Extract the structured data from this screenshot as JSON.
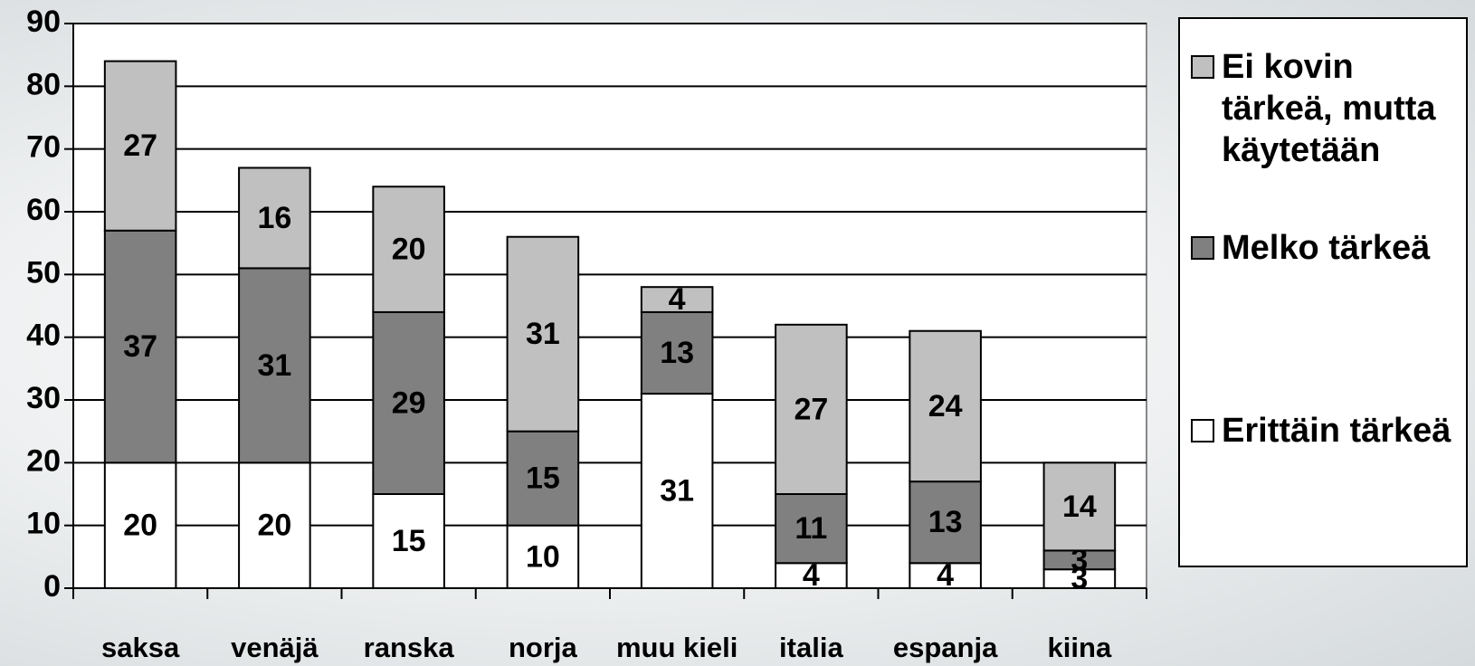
{
  "chart_data": {
    "type": "stacked_bar",
    "categories": [
      "saksa",
      "venäjä",
      "ranska",
      "norja",
      "muu kieli",
      "italia",
      "espanja",
      "kiina"
    ],
    "series": [
      {
        "name": "Erittäin tärkeä",
        "color": "#ffffff",
        "values": [
          20,
          20,
          15,
          10,
          31,
          4,
          4,
          3
        ]
      },
      {
        "name": "Melko tärkeä",
        "color": "#808080",
        "values": [
          37,
          31,
          29,
          15,
          13,
          11,
          13,
          3
        ]
      },
      {
        "name": "Ei kovin tärkeä, mutta käytetään",
        "color": "#c0c0c0",
        "values": [
          27,
          16,
          20,
          31,
          4,
          27,
          24,
          14
        ]
      }
    ],
    "ylim": [
      0,
      90
    ],
    "yticks": [
      0,
      10,
      20,
      30,
      40,
      50,
      60,
      70,
      80,
      90
    ],
    "grid": true,
    "legend": "right"
  }
}
